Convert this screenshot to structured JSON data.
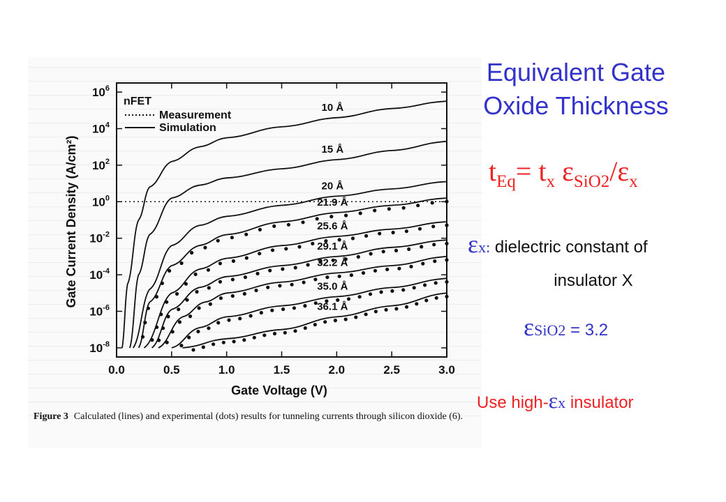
{
  "slide": {
    "title_line1": "Equivalent Gate",
    "title_line2": "Oxide Thickness",
    "equation": {
      "t": "t",
      "eq_sub": "Eq",
      "equals_t": "= t",
      "x_sub": "x",
      "epsilon": "ε",
      "sio2_sub": "SiO2",
      "slash_epsilon": "/ε",
      "x_sub2": "x"
    },
    "epsilon_def": {
      "symbol": "ε",
      "sub": "x:",
      "text_line1": "dielectric constant of",
      "text_line2": "insulator X"
    },
    "epsilon_sio2": {
      "symbol": "ε",
      "sub": "SiO2",
      "value": "= 3.2"
    },
    "high_k": {
      "prefix": "Use high-",
      "symbol": "ε",
      "sub": "x",
      "suffix": "insulator"
    },
    "colors": {
      "title": "#3333cc",
      "equation": "#ee2222",
      "highlight": "#ee2222"
    }
  },
  "figure": {
    "caption_label": "Figure 3",
    "caption_text": "Calculated (lines) and experimental (dots) results for tunneling currents through silicon dioxide (6)."
  },
  "chart_data": {
    "type": "line",
    "device_label": "nFET",
    "legend": [
      {
        "name": "Measurement",
        "style": "dotted"
      },
      {
        "name": "Simulation",
        "style": "solid"
      }
    ],
    "xlabel": "Gate Voltage (V)",
    "ylabel": "Gate Current Density (A/cm²)",
    "xlim": [
      0,
      3
    ],
    "ylim_log10": [
      -8.5,
      6.5
    ],
    "yscale": "log",
    "x_ticks": [
      "0.0",
      "0.5",
      "1.0",
      "1.5",
      "2.0",
      "2.5",
      "3.0"
    ],
    "y_ticks": [
      {
        "base": "10",
        "exp": "6"
      },
      {
        "base": "10",
        "exp": "4"
      },
      {
        "base": "10",
        "exp": "2"
      },
      {
        "base": "10",
        "exp": "0"
      },
      {
        "base": "10",
        "exp": "-2"
      },
      {
        "base": "10",
        "exp": "-4"
      },
      {
        "base": "10",
        "exp": "-6"
      },
      {
        "base": "10",
        "exp": "-8"
      }
    ],
    "reference_line_log10": 0,
    "series": [
      {
        "name": "10 Å",
        "x": [
          0.05,
          0.1,
          0.2,
          0.3,
          0.5,
          0.75,
          1.0,
          1.5,
          2.0,
          2.5,
          3.0
        ],
        "log10_y": [
          -8.0,
          -4.5,
          -1.0,
          0.8,
          2.2,
          3.0,
          3.5,
          4.1,
          4.6,
          5.1,
          5.5
        ]
      },
      {
        "name": "15 Å",
        "x": [
          0.12,
          0.2,
          0.3,
          0.5,
          0.75,
          1.0,
          1.5,
          2.0,
          2.5,
          3.0
        ],
        "log10_y": [
          -8.0,
          -4.0,
          -1.8,
          0.2,
          0.9,
          1.3,
          1.8,
          2.3,
          2.8,
          3.3
        ]
      },
      {
        "name": "20 Å",
        "x": [
          0.15,
          0.3,
          0.5,
          0.75,
          1.0,
          1.5,
          2.0,
          2.5,
          3.0
        ],
        "log10_y": [
          -8.0,
          -4.8,
          -2.4,
          -1.3,
          -0.8,
          -0.2,
          0.3,
          0.7,
          1.1
        ]
      },
      {
        "name": "21.9 Å",
        "x": [
          0.2,
          0.3,
          0.5,
          0.75,
          1.0,
          1.5,
          2.0,
          2.5,
          3.0
        ],
        "log10_y": [
          -8.0,
          -5.5,
          -3.5,
          -2.4,
          -1.8,
          -1.1,
          -0.6,
          -0.2,
          0.2
        ]
      },
      {
        "name": "25.6 Å",
        "x": [
          0.25,
          0.5,
          0.75,
          1.0,
          1.5,
          2.0,
          2.5,
          3.0
        ],
        "log10_y": [
          -8.0,
          -5.0,
          -3.7,
          -3.1,
          -2.4,
          -1.9,
          -1.5,
          -1.1
        ]
      },
      {
        "name": "29.1 Å",
        "x": [
          0.32,
          0.5,
          0.75,
          1.0,
          1.5,
          2.0,
          2.5,
          3.0
        ],
        "log10_y": [
          -8.0,
          -5.9,
          -4.7,
          -4.1,
          -3.5,
          -3.0,
          -2.5,
          -2.1
        ]
      },
      {
        "name": "32.2 Å",
        "x": [
          0.38,
          0.6,
          0.8,
          1.0,
          1.5,
          2.0,
          2.5,
          3.0
        ],
        "log10_y": [
          -8.0,
          -6.3,
          -5.5,
          -5.0,
          -4.4,
          -3.9,
          -3.5,
          -3.0
        ]
      },
      {
        "name": "35.0 Å",
        "x": [
          0.5,
          0.75,
          1.0,
          1.5,
          2.0,
          2.5,
          3.0
        ],
        "log10_y": [
          -8.0,
          -6.9,
          -6.3,
          -5.7,
          -5.2,
          -4.7,
          -4.2
        ]
      },
      {
        "name": "36.1 Å",
        "x": [
          0.6,
          1.0,
          1.5,
          2.0,
          2.5,
          3.0
        ],
        "log10_y": [
          -8.0,
          -7.5,
          -7.0,
          -6.3,
          -5.7,
          -5.0
        ]
      }
    ]
  }
}
